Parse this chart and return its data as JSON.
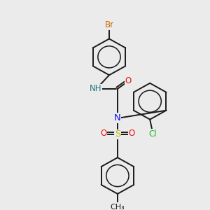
{
  "bg_color": "#ebebeb",
  "bond_color": "#1a1a1a",
  "lw": 1.4,
  "N_color": "#1010ee",
  "O_color": "#ee1010",
  "S_color": "#bbbb00",
  "Br_color": "#cc6600",
  "Cl_color": "#22bb22",
  "H_color": "#227777",
  "fs": 8.5,
  "xlim": [
    0,
    10
  ],
  "ylim": [
    0,
    10
  ]
}
